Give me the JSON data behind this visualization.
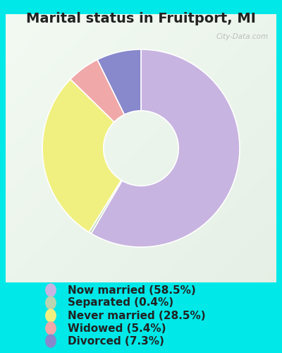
{
  "title": "Marital status in Fruitport, MI",
  "slices": [
    58.5,
    0.4,
    28.5,
    5.4,
    7.3
  ],
  "labels": [
    "Now married (58.5%)",
    "Separated (0.4%)",
    "Never married (28.5%)",
    "Widowed (5.4%)",
    "Divorced (7.3%)"
  ],
  "colors": [
    "#c8b4e0",
    "#b8d4b0",
    "#f0f080",
    "#f0a8a8",
    "#8888cc"
  ],
  "bg_outer": "#00e8e8",
  "bg_inner_tl": "#e8f4e8",
  "bg_inner_br": "#c8e8d8",
  "watermark": "City-Data.com",
  "donut_width": 0.62,
  "start_angle": 90,
  "title_fontsize": 14,
  "legend_fontsize": 11
}
